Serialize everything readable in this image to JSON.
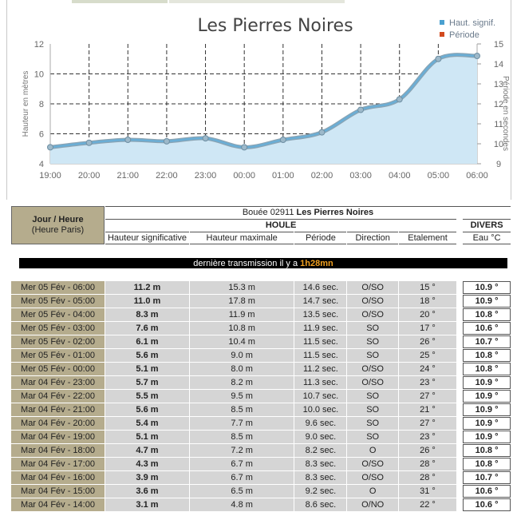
{
  "chart_data": {
    "type": "area",
    "title": "Les Pierres Noires",
    "legend": [
      "Haut. signif.",
      "Période"
    ],
    "legend_colors": [
      "#4aa0d0",
      "#d24a1e"
    ],
    "y_left_label": "Hauteur en mètres",
    "y_right_label": "Période en secondes",
    "x": [
      "19:00",
      "20:00",
      "21:00",
      "22:00",
      "23:00",
      "00:00",
      "01:00",
      "02:00",
      "03:00",
      "04:00",
      "05:00",
      "06:00"
    ],
    "y_left_ticks": [
      "4",
      "6",
      "8",
      "10",
      "12"
    ],
    "y_left_range": [
      4,
      12
    ],
    "y_right_ticks": [
      "9",
      "10",
      "11",
      "12",
      "13",
      "14",
      "15"
    ],
    "y_right_range": [
      9,
      15
    ],
    "series": [
      {
        "name": "Haut. signif.",
        "values": [
          5.1,
          5.4,
          5.6,
          5.5,
          5.7,
          5.1,
          5.6,
          6.1,
          7.6,
          8.3,
          11.0,
          11.2
        ]
      }
    ],
    "grid": true,
    "legend_position": "top-right"
  },
  "table": {
    "jour_header": "Jour / Heure",
    "jour_sub": "(Heure Paris)",
    "buoy_prefix": "Bouée 02911",
    "buoy_name": "Les Pierres Noires",
    "houle_label": "HOULE",
    "divers_label": "DIVERS",
    "columns": [
      "Hauteur significative",
      "Hauteur maximale",
      "Période",
      "Direction",
      "Etalement",
      "Eau °C"
    ],
    "banner_text": "dernière transmission il y a",
    "banner_value": "1h28mn",
    "rows": [
      [
        "Mer 05 Fév - 06:00",
        "11.2 m",
        "15.3 m",
        "14.6 sec.",
        "O/SO",
        "15 °",
        "10.9 °"
      ],
      [
        "Mer 05 Fév - 05:00",
        "11.0 m",
        "17.8 m",
        "14.7 sec.",
        "O/SO",
        "18 °",
        "10.9 °"
      ],
      [
        "Mer 05 Fév - 04:00",
        "8.3 m",
        "11.9 m",
        "13.5 sec.",
        "O/SO",
        "20 °",
        "10.8 °"
      ],
      [
        "Mer 05 Fév - 03:00",
        "7.6 m",
        "10.8 m",
        "11.9 sec.",
        "SO",
        "17 °",
        "10.6 °"
      ],
      [
        "Mer 05 Fév - 02:00",
        "6.1 m",
        "10.4 m",
        "11.5 sec.",
        "SO",
        "26 °",
        "10.7 °"
      ],
      [
        "Mer 05 Fév - 01:00",
        "5.6 m",
        "9.0 m",
        "11.5 sec.",
        "SO",
        "25 °",
        "10.8 °"
      ],
      [
        "Mer 05 Fév - 00:00",
        "5.1 m",
        "8.0 m",
        "11.2 sec.",
        "O/SO",
        "24 °",
        "10.8 °"
      ],
      [
        "Mar 04 Fév - 23:00",
        "5.7 m",
        "8.2 m",
        "11.3 sec.",
        "O/SO",
        "23 °",
        "10.9 °"
      ],
      [
        "Mar 04 Fév - 22:00",
        "5.5 m",
        "9.5 m",
        "10.7 sec.",
        "SO",
        "27 °",
        "10.9 °"
      ],
      [
        "Mar 04 Fév - 21:00",
        "5.6 m",
        "8.5 m",
        "10.0 sec.",
        "SO",
        "21 °",
        "10.9 °"
      ],
      [
        "Mar 04 Fév - 20:00",
        "5.4 m",
        "7.7 m",
        "9.6 sec.",
        "SO",
        "27 °",
        "10.9 °"
      ],
      [
        "Mar 04 Fév - 19:00",
        "5.1 m",
        "8.5 m",
        "9.0 sec.",
        "SO",
        "23 °",
        "10.9 °"
      ],
      [
        "Mar 04 Fév - 18:00",
        "4.7 m",
        "7.2 m",
        "8.2 sec.",
        "O",
        "26 °",
        "10.8 °"
      ],
      [
        "Mar 04 Fév - 17:00",
        "4.3 m",
        "6.7 m",
        "8.3 sec.",
        "O/SO",
        "28 °",
        "10.8 °"
      ],
      [
        "Mar 04 Fév - 16:00",
        "3.9 m",
        "6.7 m",
        "8.3 sec.",
        "O/SO",
        "28 °",
        "10.7 °"
      ],
      [
        "Mar 04 Fév - 15:00",
        "3.6 m",
        "6.5 m",
        "9.2 sec.",
        "O",
        "31 °",
        "10.6 °"
      ],
      [
        "Mar 04 Fév - 14:00",
        "3.1 m",
        "4.8 m",
        "8.6 sec.",
        "O/NO",
        "22 °",
        "10.6 °"
      ]
    ]
  }
}
